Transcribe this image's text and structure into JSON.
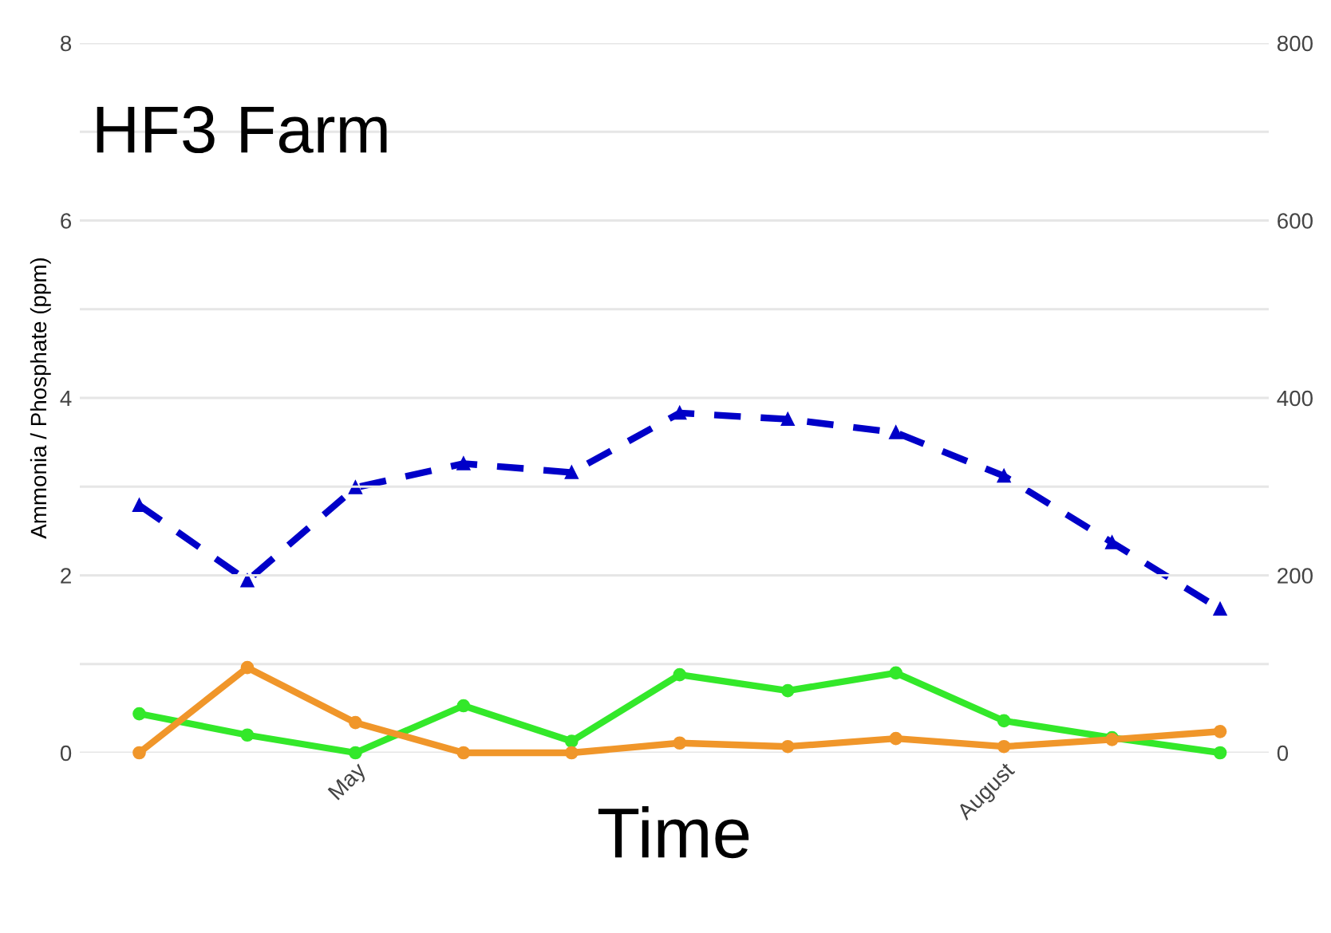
{
  "chart_data": {
    "type": "line",
    "title": "HF3 Farm",
    "xlabel": "Time",
    "ylabel": "Ammonia / Phosphate (ppm)",
    "categories": [
      null,
      null,
      "May",
      null,
      null,
      null,
      null,
      null,
      "August",
      null,
      null
    ],
    "series": [
      {
        "color": "#0000c8",
        "axis": "y2",
        "marker": "triangle",
        "line_style": "dashed",
        "values": [
          279,
          194,
          299,
          326,
          316,
          383,
          376,
          361,
          312,
          237,
          162
        ]
      },
      {
        "color": "#f0962a",
        "marker": "circle",
        "line_style": "solid",
        "values": [
          0,
          0.96,
          0.34,
          0,
          0,
          0.11,
          0.07,
          0.16,
          0.07,
          0.15,
          0.24
        ]
      },
      {
        "color": "#33e82a",
        "marker": "circle",
        "line_style": "solid",
        "values": [
          0.44,
          0.2,
          0,
          0.53,
          0.13,
          0.88,
          0.7,
          0.9,
          0.36,
          0.17,
          0
        ]
      }
    ],
    "ylim": [
      0,
      8
    ],
    "yticks": [
      0,
      {
        "value": 1,
        "label": null
      },
      2,
      {
        "value": 3,
        "label": null
      },
      4,
      {
        "value": 5,
        "label": null
      },
      6,
      {
        "value": 7,
        "label": null
      },
      8
    ],
    "y2lim": [
      0,
      800
    ],
    "y2ticks": [
      0,
      200,
      400,
      600,
      800
    ],
    "grid": "y",
    "legend": false
  }
}
